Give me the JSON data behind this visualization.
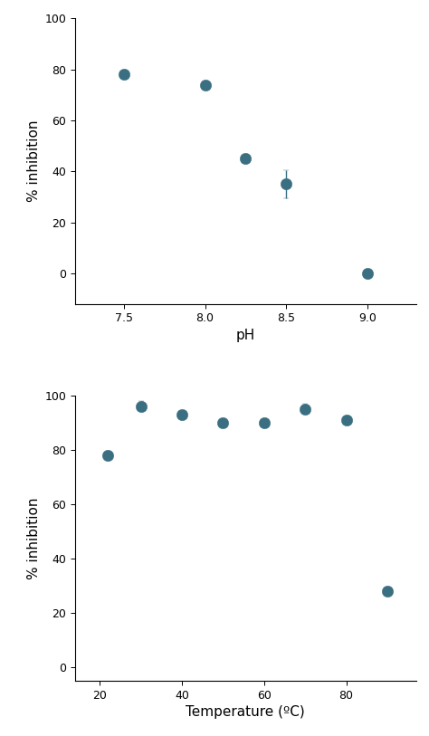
{
  "plot1": {
    "x": [
      7.5,
      8.0,
      8.25,
      8.5,
      9.0
    ],
    "y": [
      78,
      74,
      45,
      35,
      0
    ],
    "yerr": [
      1.0,
      1.2,
      1.2,
      5.5,
      0.3
    ],
    "xlabel": "pH",
    "ylabel": "% inhibition",
    "xlim": [
      7.2,
      9.3
    ],
    "ylim": [
      -12,
      100
    ],
    "xticks": [
      7.5,
      8.0,
      8.5,
      9.0
    ],
    "yticks": [
      0,
      20,
      40,
      60,
      80,
      100
    ]
  },
  "plot2": {
    "x": [
      22,
      30,
      40,
      50,
      60,
      70,
      80,
      90
    ],
    "y": [
      78,
      96,
      93,
      90,
      90,
      95,
      91,
      28
    ],
    "yerr": [
      1.2,
      1.8,
      1.2,
      1.2,
      1.0,
      1.8,
      1.2,
      1.2
    ],
    "xlabel": "Temperature (ºC)",
    "ylabel": "% inhibition",
    "xlim": [
      14,
      97
    ],
    "ylim": [
      -5,
      100
    ],
    "xticks": [
      20,
      40,
      60,
      80
    ],
    "yticks": [
      0,
      20,
      40,
      60,
      80,
      100
    ]
  },
  "marker_color": "#3a6f82",
  "marker_size": 9,
  "marker_edge_color": "#3a6f82",
  "ecolor": "#3a6f82",
  "elinewidth": 1.0,
  "capsize": 2.5,
  "background_color": "#ffffff",
  "tick_labelsize": 9,
  "label_fontsize": 11
}
